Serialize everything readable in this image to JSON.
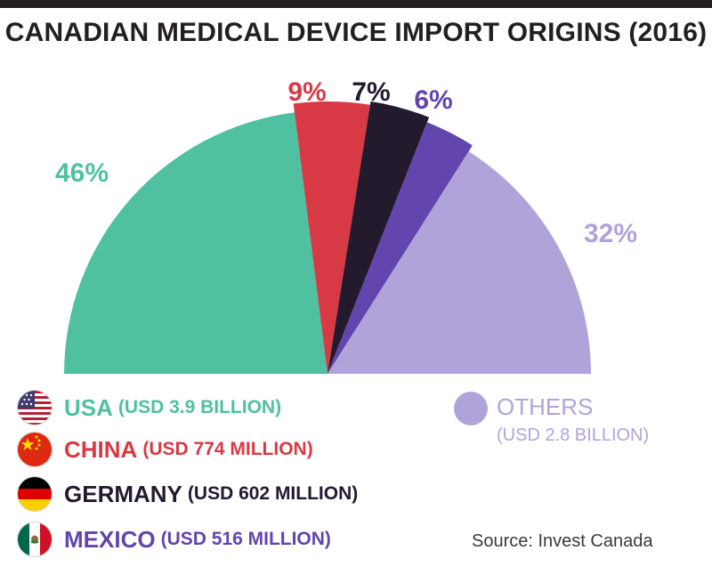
{
  "title": "CANADIAN MEDICAL DEVICE IMPORT ORIGINS (2016)",
  "source": "Source: Invest Canada",
  "chart_data": {
    "type": "pie",
    "title": "CANADIAN MEDICAL DEVICE IMPORT ORIGINS (2016)",
    "series": [
      {
        "name": "USA",
        "value_label": "(USD 3.9 BILLION)",
        "percent": 46,
        "percent_label": "46%",
        "color": "#4fc1a1",
        "flag": "usa-flag-icon"
      },
      {
        "name": "CHINA",
        "value_label": "(USD 774 MILLION)",
        "percent": 9,
        "percent_label": "9%",
        "color": "#d83a45",
        "flag": "china-flag-icon"
      },
      {
        "name": "GERMANY",
        "value_label": "(USD 602 MILLION)",
        "percent": 7,
        "percent_label": "7%",
        "color": "#231a2e",
        "flag": "germany-flag-icon"
      },
      {
        "name": "MEXICO",
        "value_label": "(USD 516 MILLION)",
        "percent": 6,
        "percent_label": "6%",
        "color": "#6245ad",
        "flag": "mexico-flag-icon"
      },
      {
        "name": "OTHERS",
        "value_label": "(USD 2.8 BILLION)",
        "percent": 32,
        "percent_label": "32%",
        "color": "#b0a3da",
        "flag": ""
      }
    ]
  }
}
